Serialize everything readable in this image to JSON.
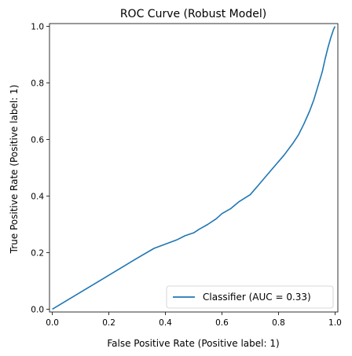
{
  "chart_data": {
    "type": "line",
    "title": "ROC Curve (Robust Model)",
    "xlabel": "False Positive Rate (Positive label: 1)",
    "ylabel": "True Positive Rate (Positive label: 1)",
    "xlim": [
      -0.01,
      1.01
    ],
    "ylim": [
      -0.01,
      1.01
    ],
    "xticks": [
      0.0,
      0.2,
      0.4,
      0.6,
      0.8,
      1.0
    ],
    "yticks": [
      0.0,
      0.2,
      0.4,
      0.6,
      0.8,
      1.0
    ],
    "xtick_labels": [
      "0.0",
      "0.2",
      "0.4",
      "0.6",
      "0.8",
      "1.0"
    ],
    "ytick_labels": [
      "0.0",
      "0.2",
      "0.4",
      "0.6",
      "0.8",
      "1.0"
    ],
    "grid": false,
    "legend_placement": "lower-right",
    "series": [
      {
        "name": "Classifier (AUC = 0.33)",
        "color": "#1f77b4",
        "x": [
          0.0,
          0.1,
          0.2,
          0.3,
          0.36,
          0.44,
          0.47,
          0.5,
          0.52,
          0.55,
          0.58,
          0.6,
          0.63,
          0.66,
          0.7,
          0.73,
          0.76,
          0.79,
          0.82,
          0.85,
          0.87,
          0.89,
          0.91,
          0.925,
          0.94,
          0.955,
          0.965,
          0.975,
          0.985,
          0.995,
          1.0
        ],
        "y": [
          0.0,
          0.06,
          0.12,
          0.18,
          0.215,
          0.245,
          0.26,
          0.27,
          0.283,
          0.3,
          0.32,
          0.338,
          0.355,
          0.38,
          0.405,
          0.44,
          0.475,
          0.51,
          0.545,
          0.585,
          0.615,
          0.655,
          0.7,
          0.74,
          0.79,
          0.84,
          0.885,
          0.925,
          0.96,
          0.99,
          1.0
        ]
      }
    ]
  }
}
